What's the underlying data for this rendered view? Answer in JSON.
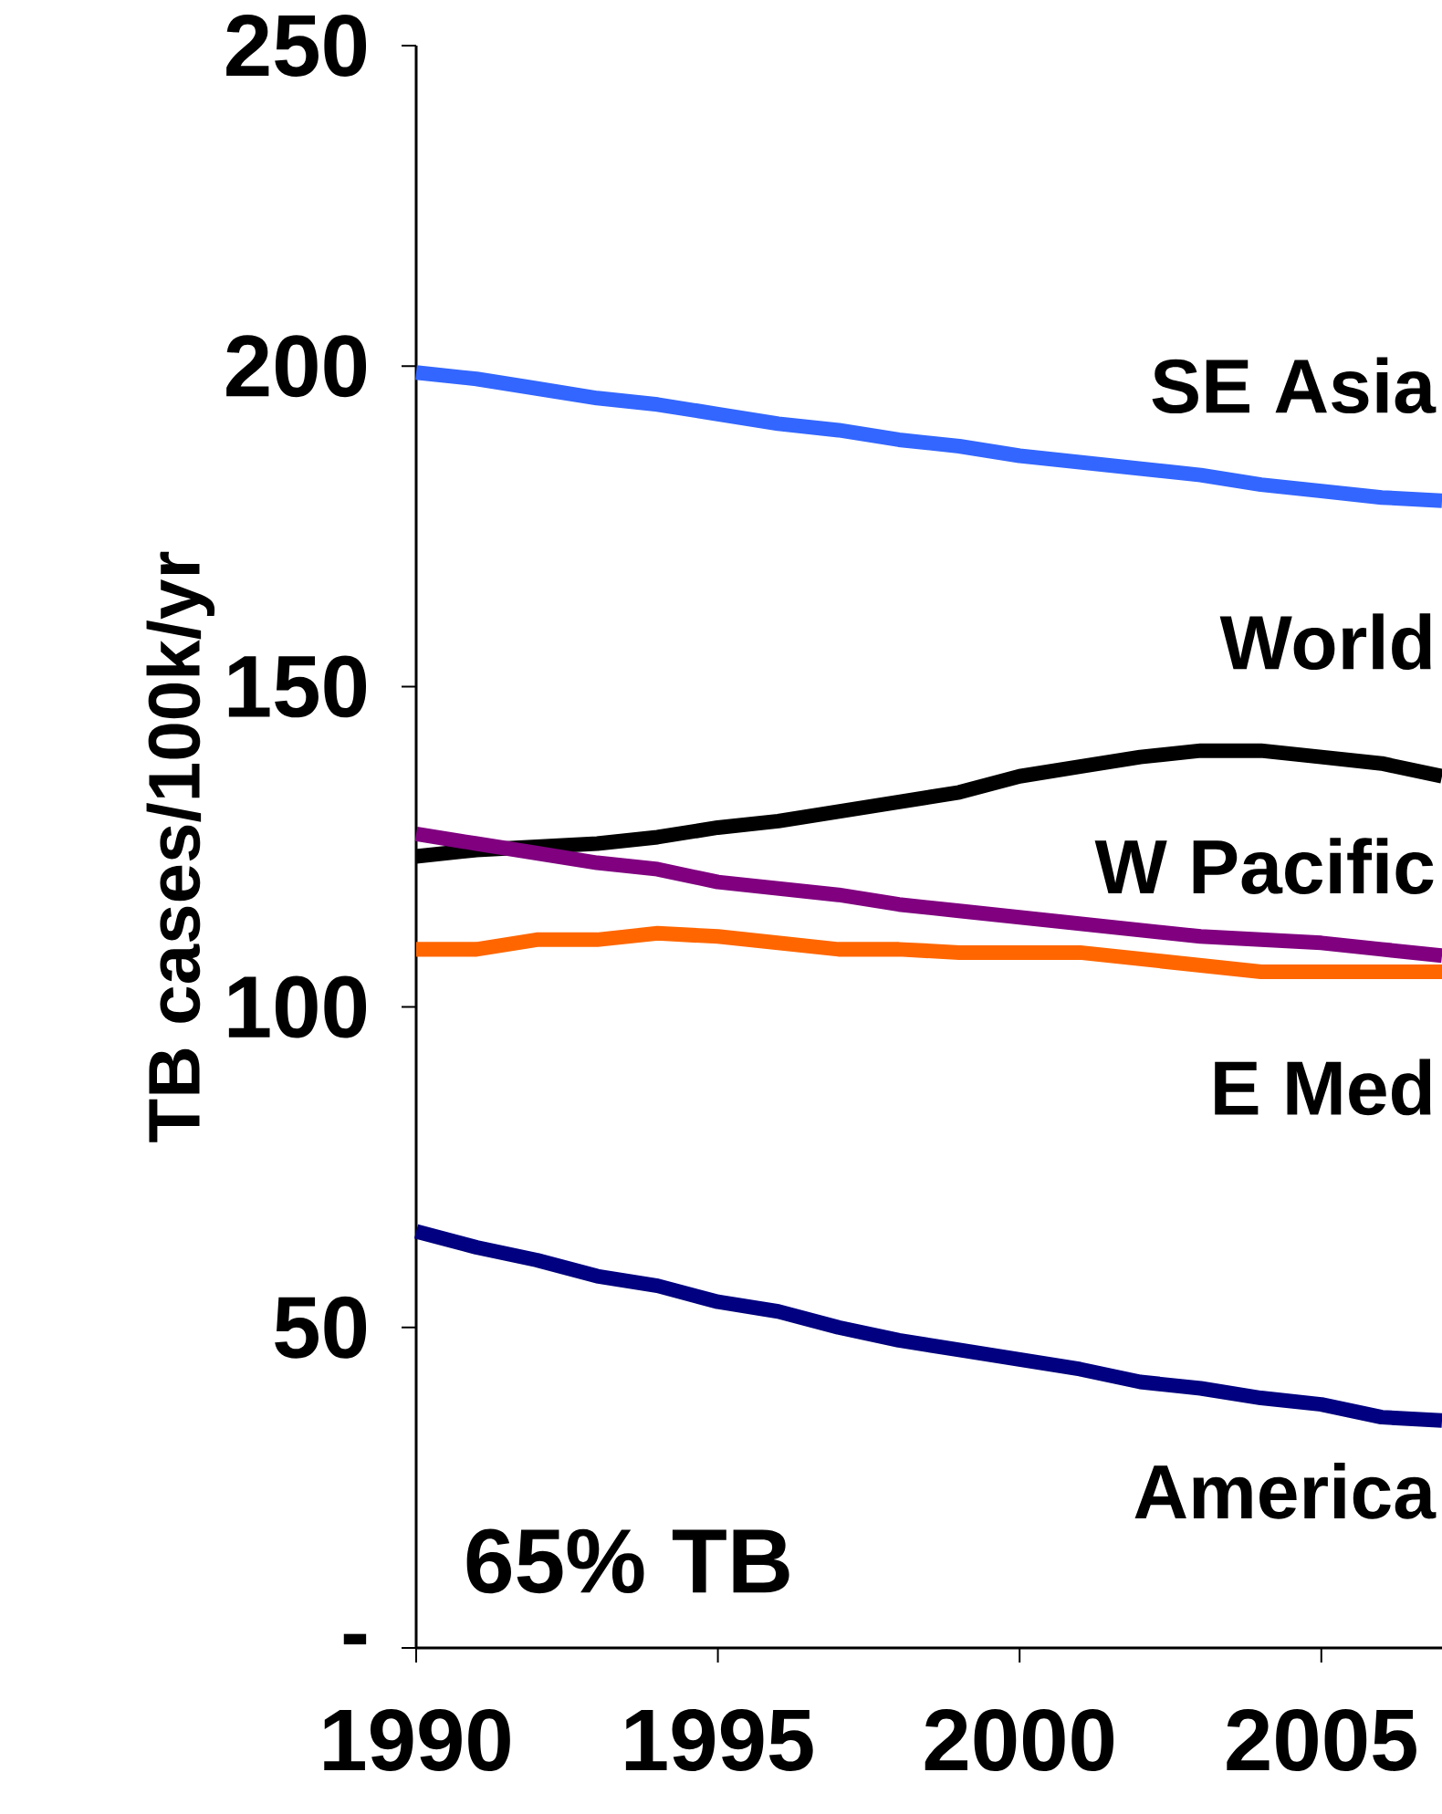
{
  "chart_data": {
    "type": "line",
    "ylabel": "TB cases/100k/yr",
    "x": [
      1990,
      1991,
      1992,
      1993,
      1994,
      1995,
      1996,
      1997,
      1998,
      1999,
      2000,
      2001,
      2002,
      2003,
      2004,
      2005,
      2006,
      2007
    ],
    "series": [
      {
        "name": "SE Asia",
        "color": "#3366ff",
        "values": [
          199,
          198,
          196.5,
          195,
          194,
          192.5,
          191,
          190,
          188.5,
          187.5,
          186,
          185,
          184,
          183,
          181.5,
          180.5,
          179.5,
          179
        ]
      },
      {
        "name": "World",
        "color": "#000000",
        "values": [
          123.5,
          124.5,
          125,
          125.5,
          126.5,
          128,
          129,
          130.5,
          132,
          133.5,
          136,
          137.5,
          139,
          140,
          140,
          139,
          138,
          136
        ]
      },
      {
        "name": "W Pacific",
        "color": "#800080",
        "values": [
          127,
          125.5,
          124,
          122.5,
          121.5,
          119.5,
          118.5,
          117.5,
          116,
          115,
          114,
          113,
          112,
          111,
          110.5,
          110,
          109,
          108
        ]
      },
      {
        "name": "E Med",
        "color": "#ff6600",
        "values": [
          109,
          109,
          110.5,
          110.5,
          111.5,
          111,
          110,
          109,
          109,
          108.5,
          108.5,
          108.5,
          107.5,
          106.5,
          105.5,
          105.5,
          105.5,
          105.5
        ]
      },
      {
        "name": "America",
        "color": "#000080",
        "values": [
          65,
          62.5,
          60.5,
          58,
          56.5,
          54,
          52.5,
          50,
          48,
          46.5,
          45,
          43.5,
          41.5,
          40.5,
          39,
          38,
          36,
          35.5
        ]
      }
    ],
    "annotations": [
      "65% TB"
    ],
    "xlim": [
      1990,
      2007
    ],
    "xticks": [
      1990,
      1995,
      2000,
      2005
    ],
    "ylim": [
      0,
      250
    ],
    "yticks": [
      {
        "value": 0,
        "label": "-"
      },
      50,
      100,
      150,
      200,
      250
    ],
    "grid": false,
    "legend": false,
    "marker": "none",
    "line_style": "solid"
  }
}
